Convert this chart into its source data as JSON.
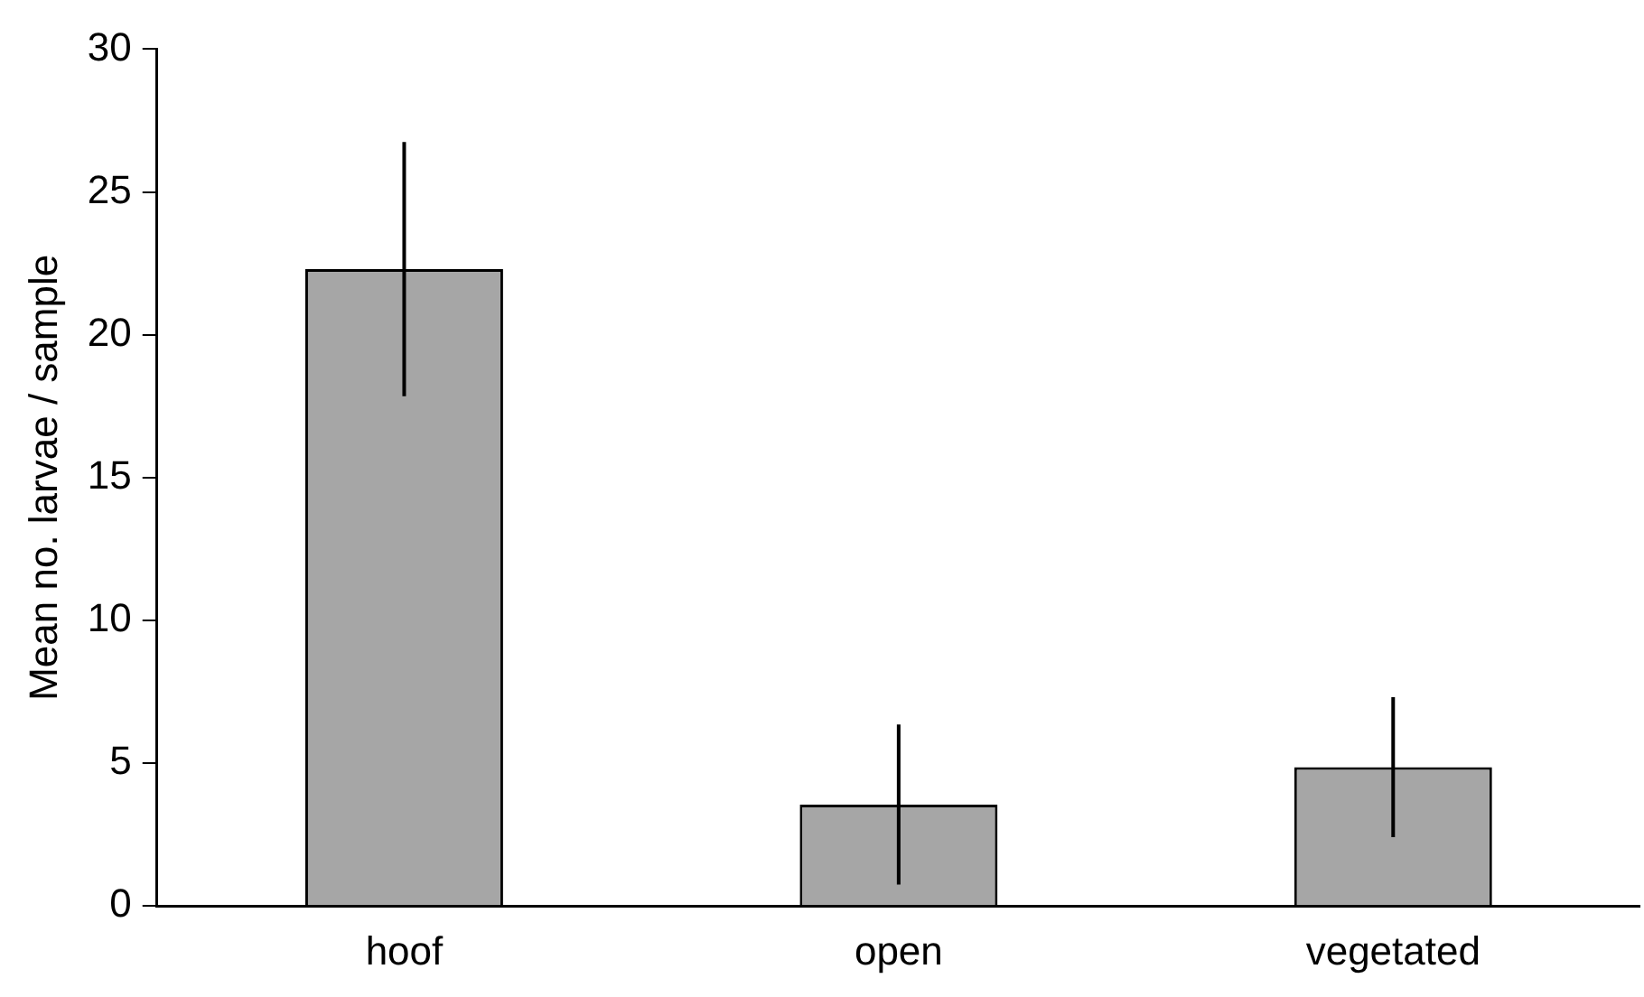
{
  "chart_data": {
    "type": "bar",
    "ylabel": "Mean no. larvae / sample",
    "categories": [
      "hoof",
      "open",
      "vegetated"
    ],
    "values": [
      22.3,
      3.55,
      4.86
    ],
    "errors": [
      4.45,
      2.8,
      2.45
    ],
    "color": "#a6a6a6",
    "ylim": [
      0,
      30
    ],
    "yticks": [
      0,
      5,
      10,
      15,
      20,
      25,
      30
    ],
    "grid": false,
    "legend": false
  }
}
